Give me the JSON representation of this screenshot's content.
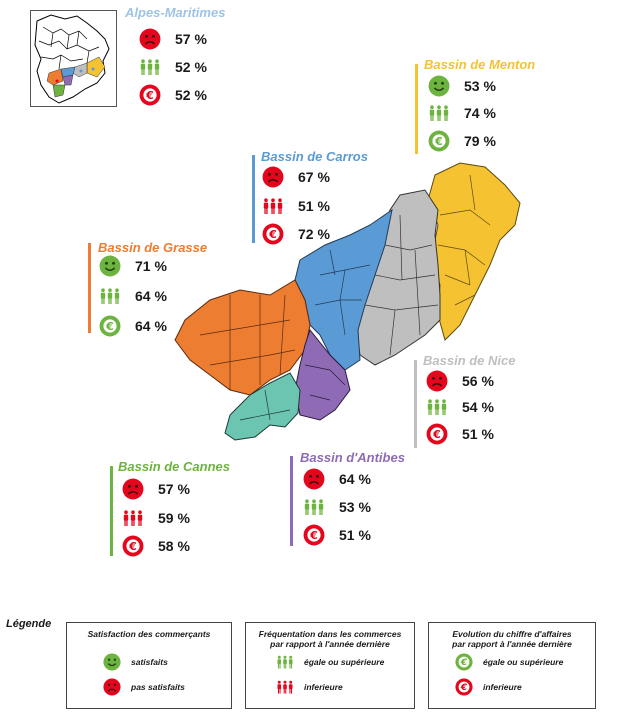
{
  "colors": {
    "menton": "#f5c231",
    "carros": "#5b9bd5",
    "grasse": "#ed7d31",
    "nice": "#bfbfbf",
    "cannes": "#6cc5b0",
    "antibes": "#8f6bb5",
    "alpes_title": "#9dc3e6",
    "green": "#6db33f",
    "red": "#e3061d"
  },
  "alpes": {
    "title": "Alpes-Maritimes",
    "satisfaction": "57 %",
    "satisfaction_icon": "sad-face-icon",
    "frequentation": "52 %",
    "frequentation_icon": "people-equal-icon",
    "ca": "52 %",
    "ca_icon": "euro-down-icon"
  },
  "menton": {
    "title": "Bassin de Menton",
    "satisfaction": "53 %",
    "satisfaction_icon": "happy-face-icon",
    "frequentation": "74 %",
    "frequentation_icon": "people-equal-icon",
    "ca": "79 %",
    "ca_icon": "euro-up-icon"
  },
  "carros": {
    "title": "Bassin de Carros",
    "satisfaction": "67 %",
    "satisfaction_icon": "sad-face-icon",
    "frequentation": "51 %",
    "frequentation_icon": "people-lower-icon",
    "ca": "72 %",
    "ca_icon": "euro-down-icon"
  },
  "grasse": {
    "title": "Bassin de Grasse",
    "satisfaction": "71 %",
    "satisfaction_icon": "happy-face-icon",
    "frequentation": "64 %",
    "frequentation_icon": "people-equal-icon",
    "ca": "64 %",
    "ca_icon": "euro-up-icon"
  },
  "nice": {
    "title": "Bassin de Nice",
    "satisfaction": "56 %",
    "satisfaction_icon": "sad-face-icon",
    "frequentation": "54 %",
    "frequentation_icon": "people-equal-icon",
    "ca": "51 %",
    "ca_icon": "euro-down-icon"
  },
  "cannes": {
    "title": "Bassin de Cannes",
    "satisfaction": "57 %",
    "satisfaction_icon": "sad-face-icon",
    "frequentation": "59 %",
    "frequentation_icon": "people-lower-icon",
    "ca": "58 %",
    "ca_icon": "euro-down-icon"
  },
  "antibes": {
    "title": "Bassin d'Antibes",
    "satisfaction": "64 %",
    "satisfaction_icon": "sad-face-icon",
    "frequentation": "53 %",
    "frequentation_icon": "people-equal-icon",
    "ca": "51 %",
    "ca_icon": "euro-down-icon"
  },
  "legend": {
    "title": "Légende",
    "box1": {
      "caption": "Satisfaction des commerçants",
      "item1": "satisfaits",
      "item2": "pas satisfaits"
    },
    "box2": {
      "caption_line1": "Fréquentation dans les commerces",
      "caption_line2": "par rapport à l'année dernière",
      "item1": "égale ou supérieure",
      "item2": "inferieure"
    },
    "box3": {
      "caption_line1": "Evolution du chiffre d'affaires",
      "caption_line2": "par rapport à l'année dernière",
      "item1": "égale ou supérieure",
      "item2": "inferieure"
    }
  }
}
